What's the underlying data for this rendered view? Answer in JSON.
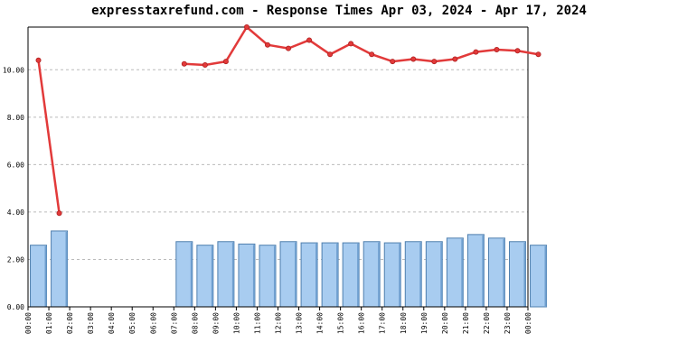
{
  "chart_data": {
    "type": "bar+line",
    "title": "expresstaxrefund.com - Response Times Apr 03, 2024 - Apr 17, 2024",
    "categories": [
      "00:00",
      "01:00",
      "02:00",
      "03:00",
      "04:00",
      "05:00",
      "06:00",
      "07:00",
      "08:00",
      "09:00",
      "10:00",
      "11:00",
      "12:00",
      "13:00",
      "14:00",
      "15:00",
      "16:00",
      "17:00",
      "18:00",
      "19:00",
      "20:00",
      "21:00",
      "22:00",
      "23:00",
      "00:00"
    ],
    "yticks": [
      "0.00",
      "2.00",
      "4.00",
      "6.00",
      "8.00",
      "10.00"
    ],
    "ylim": [
      0,
      11.8
    ],
    "grid": true,
    "bar_series": {
      "color": "#a8ccf0",
      "values": [
        2.6,
        3.2,
        null,
        null,
        null,
        null,
        null,
        2.75,
        2.6,
        2.75,
        2.65,
        2.6,
        2.75,
        2.7,
        2.7,
        2.7,
        2.75,
        2.7,
        2.75,
        2.75,
        2.9,
        3.05,
        2.9,
        2.75,
        2.6
      ]
    },
    "line_series": {
      "color": "#e23a3a",
      "values": [
        10.4,
        3.95,
        null,
        null,
        null,
        null,
        null,
        10.25,
        10.2,
        10.35,
        11.8,
        11.05,
        10.9,
        11.25,
        10.65,
        11.1,
        10.65,
        10.35,
        10.45,
        10.35,
        10.45,
        10.75,
        10.85,
        10.8,
        10.65
      ]
    }
  }
}
